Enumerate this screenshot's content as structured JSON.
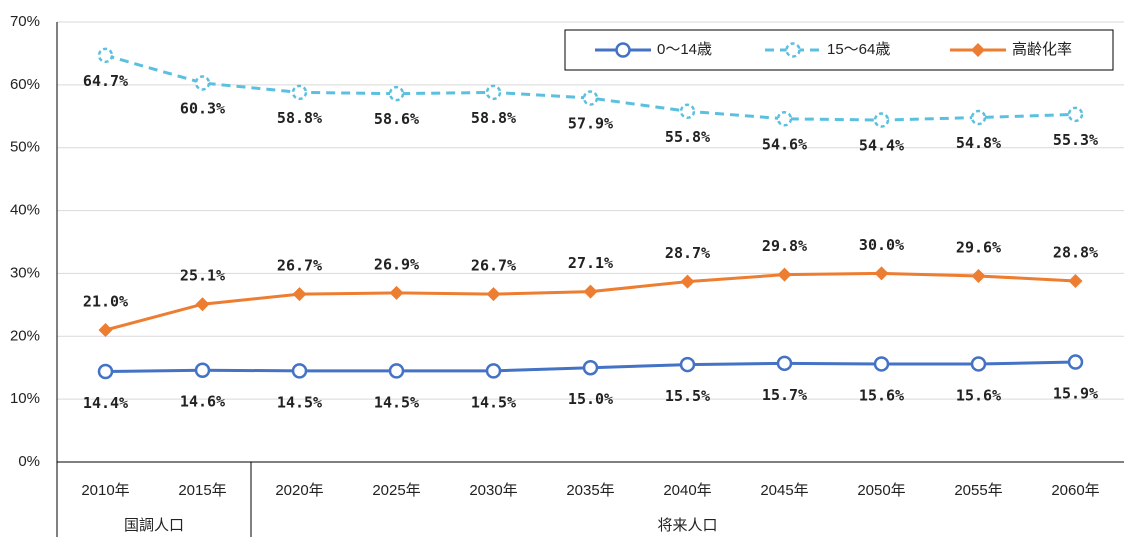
{
  "chart_data": {
    "type": "line",
    "categories": [
      "2010年",
      "2015年",
      "2020年",
      "2025年",
      "2030年",
      "2035年",
      "2040年",
      "2045年",
      "2050年",
      "2055年",
      "2060年"
    ],
    "category_groups": [
      {
        "label": "国調人口",
        "categories": [
          "2010年",
          "2015年"
        ]
      },
      {
        "label": "将来人口",
        "categories": [
          "2020年",
          "2025年",
          "2030年",
          "2035年",
          "2040年",
          "2045年",
          "2050年",
          "2055年",
          "2060年"
        ]
      }
    ],
    "series": [
      {
        "name": "0～14歳",
        "color": "#4472c4",
        "values": [
          14.4,
          14.6,
          14.5,
          14.5,
          14.5,
          15.0,
          15.5,
          15.7,
          15.6,
          15.6,
          15.9
        ],
        "value_labels": [
          "14.4%",
          "14.6%",
          "14.5%",
          "14.5%",
          "14.5%",
          "15.0%",
          "15.5%",
          "15.7%",
          "15.6%",
          "15.6%",
          "15.9%"
        ]
      },
      {
        "name": "15～64歳",
        "color": "#5bc0e0",
        "values": [
          64.7,
          60.3,
          58.8,
          58.6,
          58.8,
          57.9,
          55.8,
          54.6,
          54.4,
          54.8,
          55.3
        ],
        "value_labels": [
          "64.7%",
          "60.3%",
          "58.8%",
          "58.6%",
          "58.8%",
          "57.9%",
          "55.8%",
          "54.6%",
          "54.4%",
          "54.8%",
          "55.3%"
        ]
      },
      {
        "name": "高齢化率",
        "color": "#ed7d31",
        "values": [
          21.0,
          25.1,
          26.7,
          26.9,
          26.7,
          27.1,
          28.7,
          29.8,
          30.0,
          29.6,
          28.8
        ],
        "value_labels": [
          "21.0%",
          "25.1%",
          "26.7%",
          "26.9%",
          "26.7%",
          "27.1%",
          "28.7%",
          "29.8%",
          "30.0%",
          "29.6%",
          "28.8%"
        ]
      }
    ],
    "ylim": [
      0,
      70
    ],
    "yticks": [
      {
        "value": 0,
        "label": "0%"
      },
      {
        "value": 10,
        "label": "10%"
      },
      {
        "value": 20,
        "label": "20%"
      },
      {
        "value": 30,
        "label": "30%"
      },
      {
        "value": 40,
        "label": "40%"
      },
      {
        "value": 50,
        "label": "50%"
      },
      {
        "value": 60,
        "label": "60%"
      },
      {
        "value": 70,
        "label": "70%"
      }
    ],
    "grid": true,
    "legend": "top-right"
  }
}
